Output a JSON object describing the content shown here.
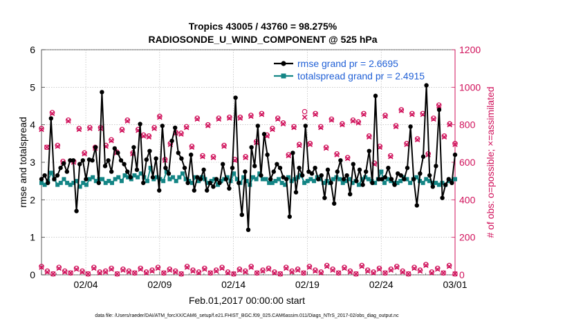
{
  "chart_data": {
    "type": "line",
    "title_line1": "Tropics 43005 / 43760 = 98.275%",
    "title_line2": "RADIOSONDE_U_WIND_COMPONENT @ 525 hPa",
    "xlabel": "Feb.01,2017 00:00:00 start",
    "ylabel_left": "rmse and totalspread",
    "ylabel_right": "# of obs: o=possible; ×=assimilated",
    "footer": "data file: /Users/raeder/DAI/ATM_forcXX/CAM6_setup/f.e21.FHIST_BGC.f09_025.CAM6assim.011/Diags_NTrS_2017-02/obs_diag_output.nc",
    "xlim": [
      0,
      28
    ],
    "ylim_left": [
      0,
      6
    ],
    "ylim_right": [
      0,
      1200
    ],
    "xticks": [
      {
        "x": 3,
        "label": "02/04"
      },
      {
        "x": 8,
        "label": "02/09"
      },
      {
        "x": 13,
        "label": "02/14"
      },
      {
        "x": 18,
        "label": "02/19"
      },
      {
        "x": 23,
        "label": "02/24"
      },
      {
        "x": 28,
        "label": "03/01"
      }
    ],
    "yticks_left": [
      "0",
      "1",
      "2",
      "3",
      "4",
      "5",
      "6"
    ],
    "yticks_right": [
      "0",
      "200",
      "400",
      "600",
      "800",
      "1000",
      "1200"
    ],
    "colors": {
      "rmse": "#000000",
      "spread": "#138585",
      "obs": "#d0105a",
      "legend_text": "#1f5fd6",
      "axis": "#333333"
    },
    "series": [
      {
        "name": "rmse grand pr = 2.6695",
        "values": [
          2.55,
          2.65,
          2.45,
          4.17,
          2.55,
          2.65,
          2.85,
          2.97,
          2.75,
          3.05,
          3.05,
          1.7,
          2.95,
          3.05,
          2.55,
          3.07,
          3.05,
          3.4,
          2.45,
          4.87,
          2.9,
          3.05,
          2.75,
          3.37,
          3.25,
          3.05,
          2.95,
          2.75,
          2.6,
          3.4,
          2.8,
          4.02,
          2.45,
          3.07,
          3.3,
          2.6,
          3.1,
          2.25,
          3.97,
          2.85,
          2.7,
          3.57,
          3.92,
          3.25,
          3.1,
          2.85,
          2.45,
          3.2,
          2.25,
          2.6,
          2.55,
          2.8,
          2.25,
          2.45,
          2.35,
          2.55,
          2.45,
          2.95,
          2.55,
          2.3,
          2.85,
          4.72,
          2.45,
          1.6,
          2.75,
          1.2,
          3.4,
          2.9,
          3.97,
          2.65,
          3.75,
          3.2,
          2.55,
          2.75,
          2.95,
          2.85,
          2.6,
          2.55,
          1.55,
          3.25,
          2.2,
          2.85,
          2.65,
          3.97,
          2.75,
          2.7,
          2.85,
          2.55,
          2.65,
          2.05,
          2.8,
          2.45,
          1.9,
          2.75,
          3.05,
          2.55,
          2.65,
          2.15,
          2.95,
          2.5,
          2.8,
          2.4,
          2.75,
          3.3,
          2.45,
          4.77,
          2.55,
          2.55,
          2.6,
          2.85,
          2.55,
          2.4,
          2.7,
          2.65,
          2.55,
          2.85,
          3.95,
          2.55,
          1.85,
          2.7,
          3.15,
          5.05,
          2.65,
          2.35,
          2.9,
          4.4,
          2.05,
          2.4,
          2.55,
          2.45,
          3.2
        ]
      },
      {
        "name": "totalspread grand pr = 2.4915",
        "values": [
          2.45,
          2.4,
          2.5,
          2.72,
          2.55,
          2.4,
          2.45,
          2.55,
          2.45,
          2.4,
          2.45,
          2.5,
          2.35,
          2.45,
          2.4,
          2.55,
          2.6,
          2.5,
          2.55,
          2.55,
          2.45,
          2.5,
          2.45,
          2.55,
          2.6,
          2.5,
          2.65,
          2.6,
          2.55,
          2.65,
          2.6,
          2.7,
          2.6,
          2.5,
          2.85,
          2.55,
          2.6,
          2.55,
          2.5,
          2.75,
          2.55,
          2.6,
          2.5,
          2.6,
          2.7,
          2.55,
          2.5,
          2.45,
          2.6,
          2.5,
          2.6,
          2.55,
          2.45,
          2.5,
          2.55,
          2.4,
          2.5,
          2.55,
          2.6,
          2.5,
          2.7,
          2.55,
          2.45,
          2.6,
          2.5,
          2.4,
          2.6,
          2.55,
          2.7,
          2.55,
          2.55,
          2.45,
          2.45,
          2.5,
          2.55,
          2.45,
          2.4,
          2.6,
          2.5,
          2.55,
          2.6,
          2.65,
          2.45,
          2.5,
          2.55,
          2.5,
          2.6,
          2.55,
          2.45,
          2.5,
          2.45,
          2.55,
          2.6,
          2.55,
          2.45,
          2.5,
          2.55,
          2.45,
          2.5,
          2.4,
          2.55,
          2.6,
          2.55,
          2.5,
          2.45,
          2.55,
          2.75,
          2.45,
          2.55,
          2.5,
          2.45,
          2.45,
          2.5,
          2.6,
          2.55,
          2.45,
          2.55,
          2.6,
          2.5,
          2.45,
          2.55,
          2.5,
          2.45,
          2.45,
          2.4,
          2.45,
          2.4,
          2.5,
          2.5,
          2.55
        ]
      }
    ],
    "obs_possible_high": [
      780,
      680,
      865,
      690,
      605,
      825,
      605,
      780,
      650,
      785,
      680,
      785,
      690,
      720,
      655,
      775,
      825,
      650,
      775,
      745,
      740,
      785,
      845,
      615,
      700,
      760,
      755,
      790,
      685,
      835,
      635,
      800,
      630,
      835,
      690,
      840,
      615,
      840,
      630,
      850,
      710,
      860,
      745,
      780,
      835,
      810,
      640,
      790,
      695,
      870,
      700,
      860,
      790,
      680,
      830,
      645,
      805,
      625,
      825,
      815,
      860,
      740,
      595,
      685,
      850,
      635,
      795,
      880,
      700,
      860,
      725,
      860,
      645,
      835,
      905,
      740,
      805,
      700
    ],
    "obs_assimilated_high": [
      775,
      680,
      860,
      685,
      600,
      820,
      600,
      775,
      645,
      780,
      675,
      780,
      685,
      715,
      650,
      770,
      820,
      645,
      770,
      740,
      735,
      780,
      840,
      610,
      695,
      755,
      750,
      785,
      680,
      830,
      630,
      795,
      625,
      830,
      685,
      835,
      610,
      835,
      625,
      845,
      705,
      855,
      740,
      775,
      830,
      805,
      635,
      785,
      690,
      840,
      695,
      855,
      785,
      675,
      825,
      640,
      800,
      620,
      820,
      810,
      855,
      735,
      590,
      680,
      845,
      630,
      790,
      875,
      695,
      855,
      720,
      855,
      640,
      830,
      900,
      735,
      800,
      695
    ],
    "obs_possible_low": [
      45,
      20,
      5,
      40,
      20,
      10,
      35,
      20,
      5,
      40,
      15,
      20,
      35,
      5,
      30,
      20,
      10,
      35,
      15,
      25,
      40,
      10,
      30,
      20,
      5,
      45,
      25,
      15,
      35,
      10,
      25,
      40,
      15,
      5,
      30,
      20,
      45,
      10,
      25,
      35,
      15,
      5,
      40,
      20,
      30,
      10,
      45,
      25,
      15,
      50,
      30,
      10,
      40,
      20,
      5,
      50,
      25,
      15,
      35,
      10,
      30,
      45,
      20,
      5,
      40,
      25,
      55,
      15,
      35,
      10,
      50,
      5
    ],
    "obs_assimilated_low": [
      40,
      15,
      5,
      35,
      15,
      10,
      30,
      15,
      5,
      35,
      10,
      15,
      30,
      5,
      25,
      15,
      10,
      30,
      10,
      20,
      35,
      10,
      25,
      15,
      5,
      40,
      20,
      10,
      30,
      10,
      20,
      35,
      10,
      5,
      25,
      15,
      40,
      10,
      20,
      30,
      10,
      5,
      35,
      15,
      25,
      10,
      40,
      20,
      10,
      45,
      25,
      10,
      35,
      15,
      5,
      45,
      20,
      10,
      30,
      10,
      25,
      40,
      15,
      5,
      35,
      20,
      50,
      10,
      30,
      10,
      45,
      5
    ]
  }
}
